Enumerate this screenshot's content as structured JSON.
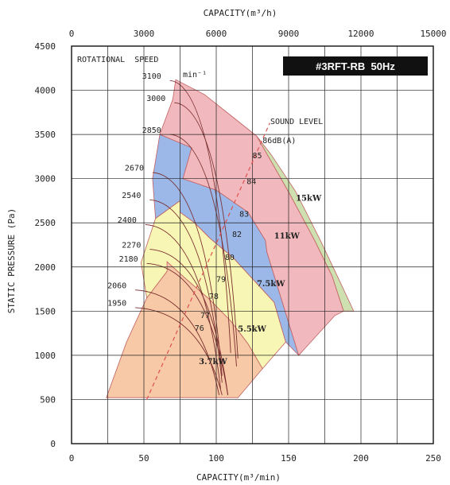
{
  "chart_data": {
    "type": "area",
    "title": "#3RFT-RB  50Hz",
    "xlabel": "CAPACITY(m³/min)",
    "x2label": "CAPACITY(m³/h)",
    "ylabel": "STATIC PRESSURE (Pa)",
    "xlim": [
      0,
      250
    ],
    "x2lim": [
      0,
      15000
    ],
    "ylim": [
      0,
      4500
    ],
    "xticks": [
      "0",
      "50",
      "100",
      "150",
      "200",
      "250"
    ],
    "x2ticks": [
      "0",
      "3000",
      "6000",
      "9000",
      "12000",
      "15000"
    ],
    "yticks": [
      "0",
      "500",
      "1000",
      "1500",
      "2000",
      "2500",
      "3000",
      "3500",
      "4000",
      "4500"
    ],
    "grid": true,
    "speed_header": "ROTATIONAL  SPEED",
    "speed_unit": "min⁻¹",
    "sound_header": "SOUND LEVEL",
    "motor_regions": [
      {
        "label": "3.7kW",
        "color": "#f7c9a6",
        "label_at": [
          88,
          900
        ],
        "boundary": [
          [
            24,
            520
          ],
          [
            38,
            1150
          ],
          [
            52,
            1650
          ],
          [
            66,
            1950
          ],
          [
            66,
            2060
          ],
          [
            78,
            1880
          ],
          [
            95,
            1640
          ],
          [
            110,
            1390
          ],
          [
            122,
            1130
          ],
          [
            132,
            850
          ],
          [
            115,
            520
          ]
        ]
      },
      {
        "label": "5.5kW",
        "color": "#f8f6b4",
        "label_at": [
          115,
          1270
        ],
        "boundary": [
          [
            48,
            2050
          ],
          [
            58,
            2550
          ],
          [
            75,
            2750
          ],
          [
            75,
            2620
          ],
          [
            85,
            2500
          ],
          [
            96,
            2320
          ],
          [
            112,
            2100
          ],
          [
            140,
            1600
          ],
          [
            148,
            1150
          ],
          [
            132,
            850
          ],
          [
            122,
            1130
          ],
          [
            110,
            1390
          ],
          [
            95,
            1640
          ],
          [
            78,
            1880
          ],
          [
            66,
            2060
          ],
          [
            66,
            1950
          ],
          [
            52,
            1650
          ]
        ]
      },
      {
        "label": "7.5kW",
        "color": "#9cb8e8",
        "label_at": [
          128,
          1780
        ],
        "boundary": [
          [
            58,
            2550
          ],
          [
            56,
            3000
          ],
          [
            61,
            3500
          ],
          [
            83,
            3350
          ],
          [
            77,
            3000
          ],
          [
            100,
            2870
          ],
          [
            122,
            2620
          ],
          [
            134,
            2300
          ],
          [
            135,
            2170
          ],
          [
            157,
            1000
          ],
          [
            148,
            1150
          ],
          [
            140,
            1600
          ],
          [
            112,
            2100
          ],
          [
            96,
            2320
          ],
          [
            85,
            2500
          ],
          [
            75,
            2620
          ],
          [
            75,
            2750
          ]
        ]
      },
      {
        "label": "11kW",
        "color": "#f1b9bd",
        "label_at": [
          140,
          2320
        ],
        "boundary": [
          [
            61,
            3500
          ],
          [
            70,
            3900
          ],
          [
            72,
            4120
          ],
          [
            92,
            3950
          ],
          [
            112,
            3690
          ],
          [
            128,
            3480
          ],
          [
            150,
            2850
          ],
          [
            168,
            2300
          ],
          [
            180,
            1900
          ],
          [
            188,
            1500
          ],
          [
            182,
            1450
          ],
          [
            157,
            1000
          ],
          [
            135,
            2170
          ],
          [
            134,
            2300
          ],
          [
            122,
            2620
          ],
          [
            100,
            2870
          ],
          [
            77,
            3000
          ],
          [
            83,
            3350
          ]
        ]
      },
      {
        "label": "15kW",
        "color": "#cfe0b0",
        "label_at": [
          155,
          2750
        ],
        "boundary": [
          [
            128,
            3480
          ],
          [
            138,
            3270
          ],
          [
            155,
            2850
          ],
          [
            172,
            2300
          ],
          [
            185,
            1850
          ],
          [
            195,
            1500
          ],
          [
            188,
            1500
          ],
          [
            180,
            1900
          ],
          [
            168,
            2300
          ],
          [
            150,
            2850
          ]
        ]
      }
    ],
    "speed_labels": [
      {
        "text": "3100",
        "at": [
          62,
          4130
        ]
      },
      {
        "text": "3000",
        "at": [
          65,
          3880
        ]
      },
      {
        "text": "2850",
        "at": [
          62,
          3520
        ]
      },
      {
        "text": "2670",
        "at": [
          50,
          3090
        ]
      },
      {
        "text": "2540",
        "at": [
          48,
          2780
        ]
      },
      {
        "text": "2400",
        "at": [
          45,
          2500
        ]
      },
      {
        "text": "2270",
        "at": [
          48,
          2220
        ]
      },
      {
        "text": "2180",
        "at": [
          46,
          2060
        ]
      },
      {
        "text": "2060",
        "at": [
          38,
          1760
        ]
      },
      {
        "text": "1950",
        "at": [
          38,
          1560
        ]
      }
    ],
    "sound_levels": [
      {
        "text": "86dB(A)",
        "at": [
          132,
          3400
        ]
      },
      {
        "text": "85",
        "at": [
          125,
          3230
        ]
      },
      {
        "text": "84",
        "at": [
          121,
          2940
        ]
      },
      {
        "text": "83",
        "at": [
          116,
          2570
        ]
      },
      {
        "text": "82",
        "at": [
          111,
          2340
        ]
      },
      {
        "text": "80",
        "at": [
          106,
          2080
        ]
      },
      {
        "text": "79",
        "at": [
          100,
          1830
        ]
      },
      {
        "text": "78",
        "at": [
          95,
          1640
        ]
      },
      {
        "text": "77",
        "at": [
          89,
          1420
        ]
      },
      {
        "text": "76",
        "at": [
          85,
          1280
        ]
      }
    ]
  }
}
